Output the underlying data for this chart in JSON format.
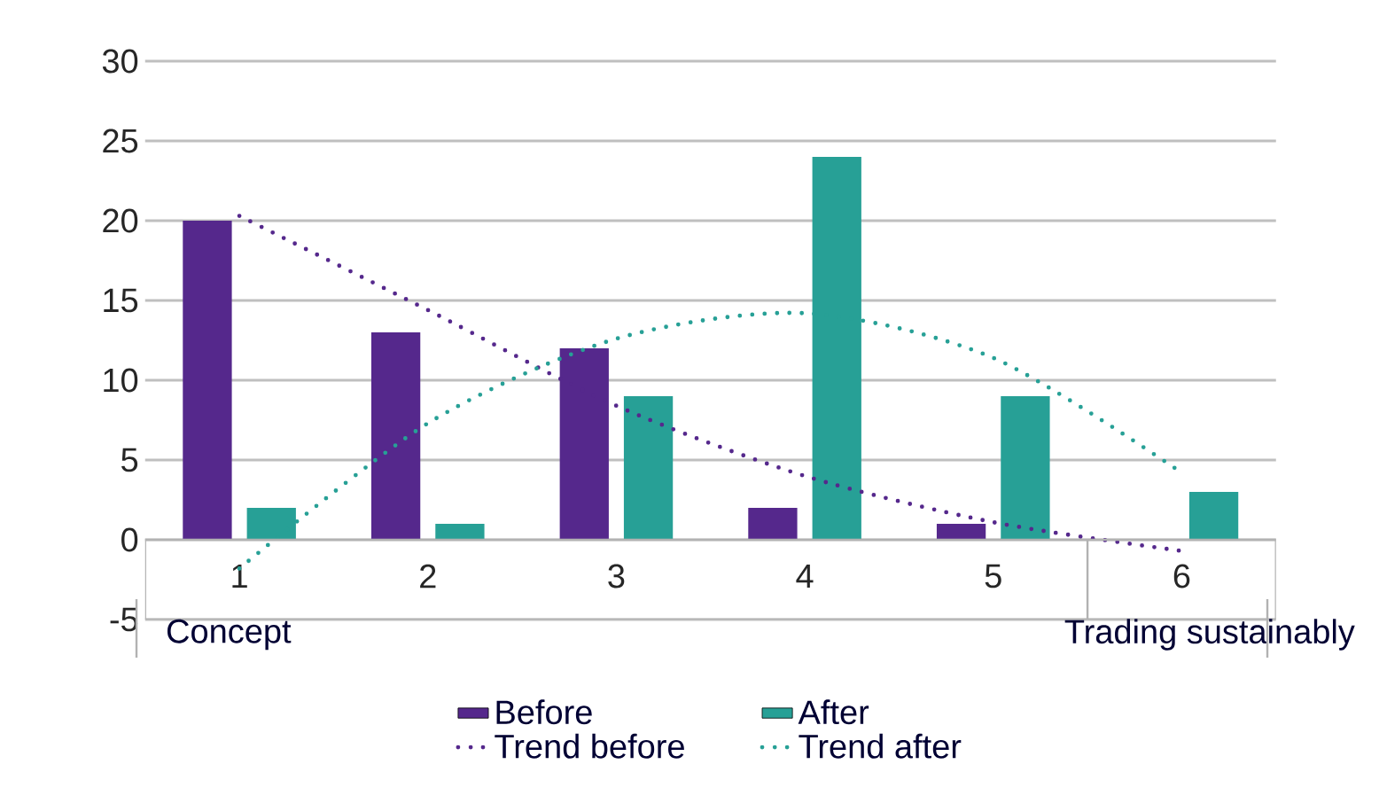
{
  "chart_data": {
    "type": "bar",
    "categories": [
      "1",
      "2",
      "3",
      "4",
      "5",
      "6"
    ],
    "series": [
      {
        "name": "Before",
        "color": "#55288c",
        "values": [
          20,
          13,
          12,
          2,
          1,
          null
        ]
      },
      {
        "name": "After",
        "color": "#27a096",
        "values": [
          2,
          1,
          9,
          24,
          9,
          3
        ]
      },
      {
        "name": "Trend before",
        "type": "line",
        "line_style": "dotted",
        "color": "#55288c",
        "values": [
          20.3,
          14.4,
          8.4,
          4.0,
          1.1,
          -0.7
        ]
      },
      {
        "name": "Trend after",
        "type": "line",
        "line_style": "dotted",
        "color": "#27a096",
        "values": [
          -1.8,
          7.3,
          12.6,
          14.2,
          11.4,
          4.2
        ]
      }
    ],
    "ylim": [
      -5,
      30
    ],
    "yticks": [
      -5,
      0,
      5,
      10,
      15,
      20,
      25,
      30
    ],
    "grid": "y",
    "legend": "bottom",
    "marker": "none",
    "annotations": [
      "Concept",
      "Trading sustainably"
    ]
  }
}
